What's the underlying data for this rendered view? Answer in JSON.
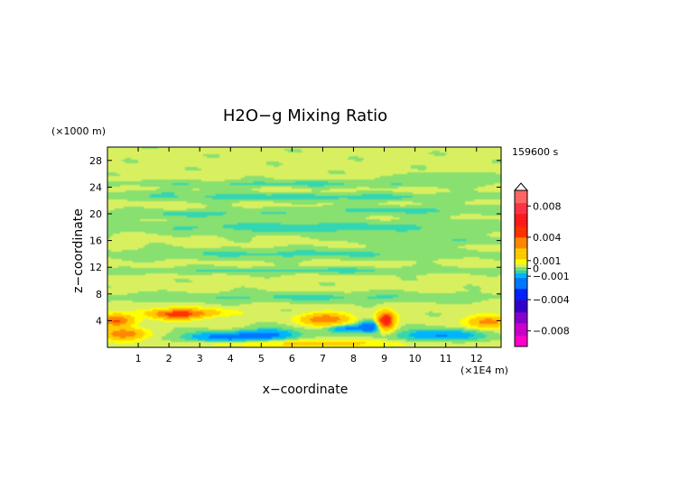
{
  "chart_data": {
    "type": "heatmap",
    "title": "H2O−g Mixing Ratio",
    "time_label": "159600 s",
    "xlabel": "x−coordinate",
    "ylabel": "z−coordinate",
    "x_unit": "(×1E4 m)",
    "y_unit": "(×1000 m)",
    "xlim": [
      0,
      12.8
    ],
    "ylim": [
      0,
      30
    ],
    "x_ticks": [
      {
        "v": 1,
        "label": "1"
      },
      {
        "v": 2,
        "label": "2"
      },
      {
        "v": 3,
        "label": "3"
      },
      {
        "v": 4,
        "label": "4"
      },
      {
        "v": 5,
        "label": "5"
      },
      {
        "v": 6,
        "label": "6"
      },
      {
        "v": 7,
        "label": "7"
      },
      {
        "v": 8,
        "label": "8"
      },
      {
        "v": 9,
        "label": "9"
      },
      {
        "v": 10,
        "label": "10"
      },
      {
        "v": 11,
        "label": "11"
      },
      {
        "v": 12,
        "label": "12"
      }
    ],
    "y_ticks": [
      {
        "v": 4,
        "label": "4"
      },
      {
        "v": 8,
        "label": "8"
      },
      {
        "v": 12,
        "label": "12"
      },
      {
        "v": 16,
        "label": "16"
      },
      {
        "v": 20,
        "label": "20"
      },
      {
        "v": 24,
        "label": "24"
      },
      {
        "v": 28,
        "label": "28"
      }
    ],
    "background_value": 0.0003,
    "colorbar": {
      "range": [
        -0.01,
        0.01
      ],
      "ticks": [
        {
          "v": 0.008,
          "label": "0.008"
        },
        {
          "v": 0.004,
          "label": "0.004"
        },
        {
          "v": 0.001,
          "label": "0.001"
        },
        {
          "v": 0.0,
          "label": "0"
        },
        {
          "v": -0.001,
          "label": "−0.001"
        },
        {
          "v": -0.004,
          "label": "−0.004"
        },
        {
          "v": -0.008,
          "label": "−0.008"
        }
      ],
      "stops": [
        {
          "v": -0.01,
          "color": "#ff00cc"
        },
        {
          "v": -0.0085,
          "color": "#cc00cc"
        },
        {
          "v": -0.007,
          "color": "#8800cc"
        },
        {
          "v": -0.0055,
          "color": "#3300cc"
        },
        {
          "v": -0.004,
          "color": "#0022ff"
        },
        {
          "v": -0.0025,
          "color": "#0077ff"
        },
        {
          "v": -0.0012,
          "color": "#00b4ff"
        },
        {
          "v": -0.0006,
          "color": "#33d6b0"
        },
        {
          "v": -0.0002,
          "color": "#88e070"
        },
        {
          "v": 0.0002,
          "color": "#d8f060"
        },
        {
          "v": 0.0006,
          "color": "#ffff00"
        },
        {
          "v": 0.0012,
          "color": "#ffcc00"
        },
        {
          "v": 0.0025,
          "color": "#ff8800"
        },
        {
          "v": 0.004,
          "color": "#ff3300"
        },
        {
          "v": 0.0055,
          "color": "#ff1a1a"
        },
        {
          "v": 0.007,
          "color": "#ff3344"
        },
        {
          "v": 0.0085,
          "color": "#ff6666"
        },
        {
          "v": 0.01,
          "color": "#ffaaaa"
        }
      ]
    },
    "features": [
      {
        "x": 6.0,
        "z": 24.5,
        "sx": 6.0,
        "sz": 0.5,
        "a": -0.0006
      },
      {
        "x": 11.0,
        "z": 25.5,
        "sx": 1.5,
        "sz": 0.6,
        "a": -0.0005
      },
      {
        "x": 2.5,
        "z": 23.2,
        "sx": 1.5,
        "sz": 0.4,
        "a": -0.0004
      },
      {
        "x": 6.4,
        "z": 22.5,
        "sx": 6.5,
        "sz": 0.6,
        "a": -0.0007
      },
      {
        "x": 3.0,
        "z": 20.0,
        "sx": 3.0,
        "sz": 0.6,
        "a": -0.0006
      },
      {
        "x": 9.5,
        "z": 20.5,
        "sx": 3.5,
        "sz": 0.7,
        "a": -0.0006
      },
      {
        "x": 6.4,
        "z": 18.0,
        "sx": 6.5,
        "sz": 1.0,
        "a": -0.0007
      },
      {
        "x": 10.5,
        "z": 16.0,
        "sx": 2.5,
        "sz": 0.6,
        "a": -0.0005
      },
      {
        "x": 6.0,
        "z": 14.0,
        "sx": 6.0,
        "sz": 0.8,
        "a": -0.0006
      },
      {
        "x": 6.4,
        "z": 11.5,
        "sx": 6.5,
        "sz": 0.5,
        "a": -0.0006
      },
      {
        "x": 6.4,
        "z": 7.5,
        "sx": 6.5,
        "sz": 0.7,
        "a": -0.0006
      },
      {
        "x": 2.3,
        "z": 4.8,
        "sx": 0.7,
        "sz": 0.6,
        "a": 0.003
      },
      {
        "x": 0.3,
        "z": 4.0,
        "sx": 0.5,
        "sz": 0.8,
        "a": 0.004
      },
      {
        "x": 0.5,
        "z": 2.0,
        "sx": 0.6,
        "sz": 0.8,
        "a": 0.0035
      },
      {
        "x": 2.5,
        "z": 5.2,
        "sx": 1.2,
        "sz": 0.6,
        "a": 0.0025
      },
      {
        "x": 7.1,
        "z": 4.2,
        "sx": 0.7,
        "sz": 0.8,
        "a": 0.0035
      },
      {
        "x": 9.05,
        "z": 4.0,
        "sx": 0.25,
        "sz": 1.2,
        "a": 0.006
      },
      {
        "x": 12.4,
        "z": 3.8,
        "sx": 0.6,
        "sz": 0.8,
        "a": 0.003
      },
      {
        "x": 3.7,
        "z": 1.5,
        "sx": 1.2,
        "sz": 0.8,
        "a": -0.0018
      },
      {
        "x": 5.3,
        "z": 1.9,
        "sx": 1.0,
        "sz": 0.9,
        "a": -0.0016
      },
      {
        "x": 7.8,
        "z": 2.8,
        "sx": 0.6,
        "sz": 0.6,
        "a": -0.0016
      },
      {
        "x": 8.55,
        "z": 3.1,
        "sx": 0.35,
        "sz": 0.8,
        "a": -0.0024
      },
      {
        "x": 10.8,
        "z": 1.8,
        "sx": 1.3,
        "sz": 0.9,
        "a": -0.0016
      },
      {
        "x": 6.4,
        "z": 0.6,
        "sx": 3.5,
        "sz": 0.5,
        "a": 0.0012
      }
    ]
  }
}
